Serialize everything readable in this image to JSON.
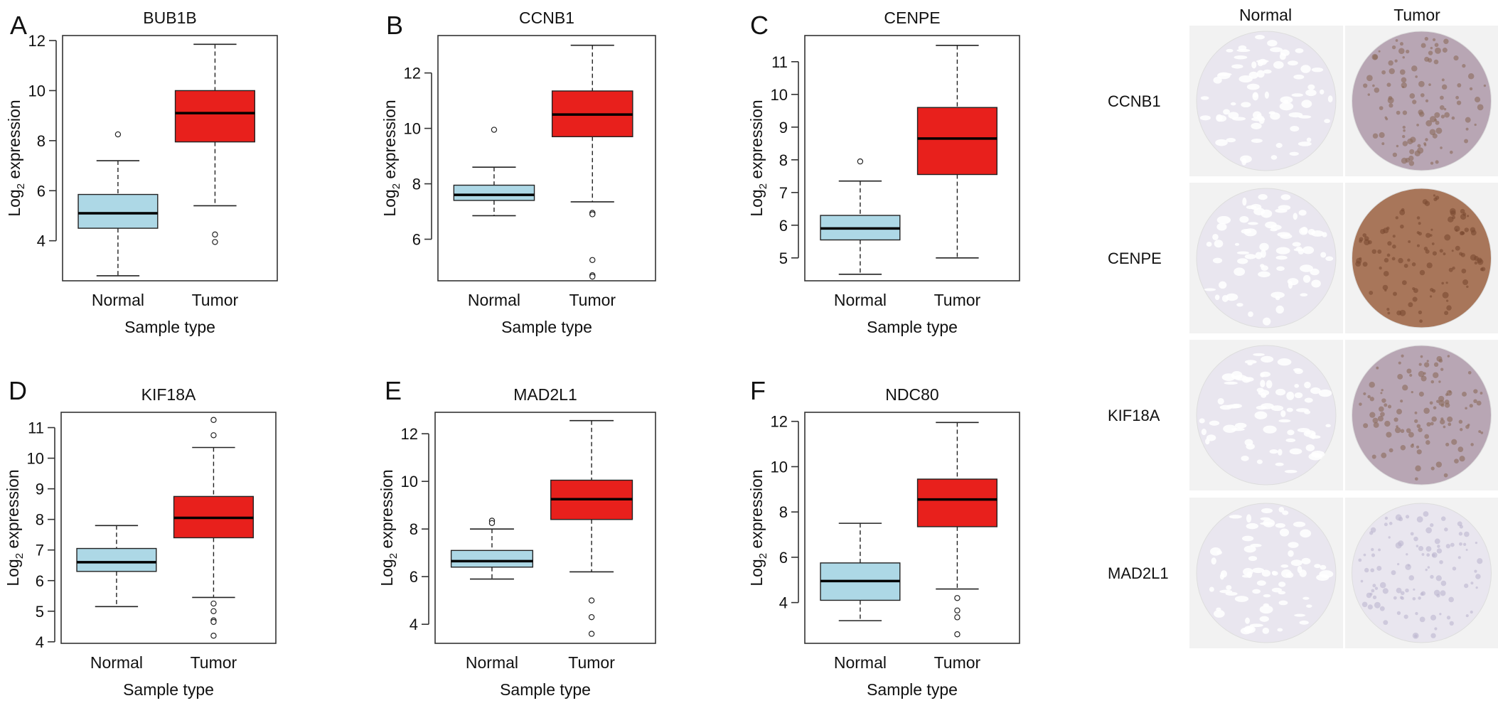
{
  "chart_data": [
    {
      "panel": "A",
      "type": "box",
      "title": "BUB1B",
      "xlabel": "Sample type",
      "ylabel": "Log2 expression",
      "ylim": [
        2.4,
        12.2
      ],
      "yticks": [
        4,
        6,
        8,
        10,
        12
      ],
      "categories": [
        "Normal",
        "Tumor"
      ],
      "series": [
        {
          "whisker_low": 2.6,
          "q1": 4.5,
          "median": 5.1,
          "q3": 5.85,
          "whisker_high": 7.2,
          "outliers": [
            8.25
          ]
        },
        {
          "whisker_low": 5.4,
          "q1": 7.95,
          "median": 9.1,
          "q3": 10.0,
          "whisker_high": 11.85,
          "outliers": [
            4.25,
            3.95
          ]
        }
      ]
    },
    {
      "panel": "B",
      "type": "box",
      "title": "CCNB1",
      "xlabel": "Sample type",
      "ylabel": "Log2 expression",
      "ylim": [
        4.5,
        13.35
      ],
      "yticks": [
        6,
        8,
        10,
        12
      ],
      "categories": [
        "Normal",
        "Tumor"
      ],
      "series": [
        {
          "whisker_low": 6.85,
          "q1": 7.4,
          "median": 7.6,
          "q3": 7.95,
          "whisker_high": 8.6,
          "outliers": [
            9.95
          ]
        },
        {
          "whisker_low": 7.35,
          "q1": 9.7,
          "median": 10.5,
          "q3": 11.35,
          "whisker_high": 13.0,
          "outliers": [
            6.95,
            6.9,
            5.25,
            4.7,
            4.65
          ]
        }
      ]
    },
    {
      "panel": "C",
      "type": "box",
      "title": "CENPE",
      "xlabel": "Sample type",
      "ylabel": "Log2 expression",
      "ylim": [
        4.3,
        11.8
      ],
      "yticks": [
        5,
        6,
        7,
        8,
        9,
        10,
        11
      ],
      "categories": [
        "Normal",
        "Tumor"
      ],
      "series": [
        {
          "whisker_low": 4.5,
          "q1": 5.55,
          "median": 5.9,
          "q3": 6.3,
          "whisker_high": 7.35,
          "outliers": [
            7.95
          ]
        },
        {
          "whisker_low": 5.0,
          "q1": 7.55,
          "median": 8.65,
          "q3": 9.6,
          "whisker_high": 11.5,
          "outliers": []
        }
      ]
    },
    {
      "panel": "D",
      "type": "box",
      "title": "KIF18A",
      "xlabel": "Sample type",
      "ylabel": "Log2 expression",
      "ylim": [
        3.95,
        11.5
      ],
      "yticks": [
        4,
        5,
        6,
        7,
        8,
        9,
        10,
        11
      ],
      "categories": [
        "Normal",
        "Tumor"
      ],
      "series": [
        {
          "whisker_low": 5.15,
          "q1": 6.3,
          "median": 6.6,
          "q3": 7.05,
          "whisker_high": 7.8,
          "outliers": []
        },
        {
          "whisker_low": 5.45,
          "q1": 7.4,
          "median": 8.05,
          "q3": 8.75,
          "whisker_high": 10.35,
          "outliers": [
            11.25,
            10.75,
            5.25,
            5.0,
            4.7,
            4.65,
            4.2
          ]
        }
      ]
    },
    {
      "panel": "E",
      "type": "box",
      "title": "MAD2L1",
      "xlabel": "Sample type",
      "ylabel": "Log2 expression",
      "ylim": [
        3.2,
        12.9
      ],
      "yticks": [
        4,
        6,
        8,
        10,
        12
      ],
      "categories": [
        "Normal",
        "Tumor"
      ],
      "series": [
        {
          "whisker_low": 5.9,
          "q1": 6.4,
          "median": 6.65,
          "q3": 7.1,
          "whisker_high": 8.0,
          "outliers": [
            8.35,
            8.25
          ]
        },
        {
          "whisker_low": 6.2,
          "q1": 8.4,
          "median": 9.25,
          "q3": 10.05,
          "whisker_high": 12.55,
          "outliers": [
            5.0,
            4.3,
            3.6
          ]
        }
      ]
    },
    {
      "panel": "F",
      "type": "box",
      "title": "NDC80",
      "xlabel": "Sample type",
      "ylabel": "Log2 expression",
      "ylim": [
        2.2,
        12.4
      ],
      "yticks": [
        4,
        6,
        8,
        10,
        12
      ],
      "categories": [
        "Normal",
        "Tumor"
      ],
      "series": [
        {
          "whisker_low": 3.2,
          "q1": 4.1,
          "median": 4.95,
          "q3": 5.75,
          "whisker_high": 7.5,
          "outliers": []
        },
        {
          "whisker_low": 4.6,
          "q1": 7.35,
          "median": 8.55,
          "q3": 9.45,
          "whisker_high": 11.95,
          "outliers": [
            4.2,
            3.65,
            3.35,
            2.6
          ]
        }
      ]
    }
  ],
  "colors": {
    "normal_box": "#add8e6",
    "tumor_box": "#e8201c",
    "axis": "#333333",
    "tissue_bg": "#f2f2f2"
  },
  "ihc": {
    "col_headers": [
      "Normal",
      "Tumor"
    ],
    "rows": [
      {
        "gene": "CCNB1",
        "normal_stain": "weak",
        "tumor_stain": "moderate"
      },
      {
        "gene": "CENPE",
        "normal_stain": "weak",
        "tumor_stain": "strong"
      },
      {
        "gene": "KIF18A",
        "normal_stain": "weak",
        "tumor_stain": "moderate"
      },
      {
        "gene": "MAD2L1",
        "normal_stain": "weak",
        "tumor_stain": "weak"
      }
    ]
  }
}
